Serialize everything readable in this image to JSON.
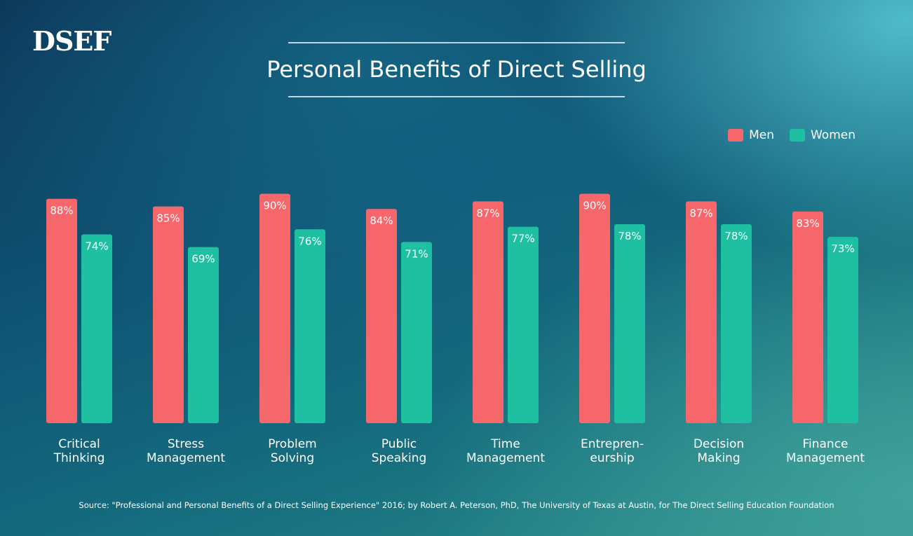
{
  "logo": {
    "text": "DSEF"
  },
  "chart_data": {
    "type": "bar",
    "title": "Personal Benefits of Direct Selling",
    "categories": [
      "Critical\nThinking",
      "Stress\nManagement",
      "Problem\nSolving",
      "Public\nSpeaking",
      "Time\nManagement",
      "Entrepren-\neurship",
      "Decision\nMaking",
      "Finance\nManagement"
    ],
    "series": [
      {
        "name": "Men",
        "values": [
          88,
          85,
          90,
          84,
          87,
          90,
          87,
          83
        ],
        "labels": [
          "88%",
          "85%",
          "90%",
          "84%",
          "87%",
          "90%",
          "87%",
          "83%"
        ]
      },
      {
        "name": "Women",
        "values": [
          74,
          69,
          76,
          71,
          77,
          78,
          78,
          73
        ],
        "labels": [
          "74%",
          "69%",
          "76%",
          "71%",
          "77%",
          "78%",
          "78%",
          "73%"
        ]
      }
    ],
    "ylim": [
      0,
      100
    ],
    "legend_position": "top-right",
    "grid": false
  },
  "colors": {
    "men": "#f5676a",
    "women": "#1fbfa2"
  },
  "source": "Source: \"Professional and Personal Benefits of a Direct Selling Experience\" 2016; by Robert A. Peterson, PhD, The University of Texas at Austin, for The Direct Selling Education Foundation"
}
